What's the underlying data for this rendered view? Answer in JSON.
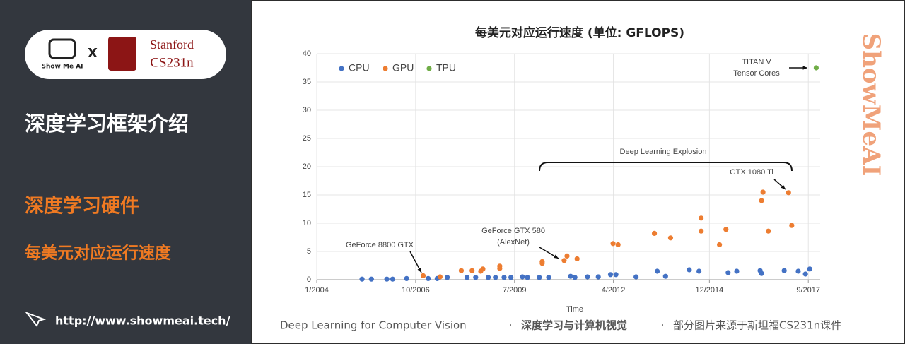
{
  "slide": {
    "logo": {
      "brand": "Show Me AI",
      "cross": "X",
      "school": "Stanford",
      "course": "CS231n"
    },
    "section_title": "深度学习框架介绍",
    "topic": "深度学习硬件",
    "subtopic": "每美元对应运行速度",
    "url": "http://www.showmeai.tech/",
    "footer": {
      "english": "Deep Learning for Computer Vision",
      "separator": "·",
      "chinese": "深度学习与计算机视觉",
      "source": "部分图片来源于斯坦福CS231n课件"
    },
    "watermark": "ShowMeAI"
  },
  "chart_data": {
    "type": "scatter",
    "title": "每美元对应运行速度 (单位: GFLOPS)",
    "x_label": "Time",
    "xlim": [
      2004,
      2018
    ],
    "xticks": [
      {
        "value": 2004.0,
        "label": "1/2004"
      },
      {
        "value": 2006.75,
        "label": "10/2006"
      },
      {
        "value": 2009.5,
        "label": "7/2009"
      },
      {
        "value": 2012.25,
        "label": "4/2012"
      },
      {
        "value": 2014.92,
        "label": "12/2014"
      },
      {
        "value": 2017.67,
        "label": "9/2017"
      }
    ],
    "ylim": [
      0,
      40
    ],
    "yticks": [
      0,
      5,
      10,
      15,
      20,
      25,
      30,
      35,
      40
    ],
    "grid": true,
    "legend": "upper left",
    "series": [
      {
        "name": "CPU",
        "color": "#4472c4",
        "x": [
          2005.26,
          2005.52,
          2005.95,
          2006.11,
          2006.5,
          2007.1,
          2007.35,
          2007.63,
          2008.18,
          2008.42,
          2008.77,
          2008.97,
          2009.21,
          2009.4,
          2009.72,
          2009.86,
          2010.19,
          2010.45,
          2011.06,
          2011.18,
          2011.53,
          2011.83,
          2012.17,
          2012.32,
          2012.88,
          2013.47,
          2013.7,
          2014.36,
          2014.63,
          2015.44,
          2015.68,
          2016.33,
          2016.37,
          2017.0,
          2017.39,
          2017.59,
          2017.71
        ],
        "values": [
          0.1,
          0.1,
          0.1,
          0.1,
          0.2,
          0.2,
          0.2,
          0.4,
          0.4,
          0.4,
          0.4,
          0.4,
          0.4,
          0.4,
          0.5,
          0.4,
          0.4,
          0.4,
          0.6,
          0.4,
          0.5,
          0.5,
          0.9,
          0.9,
          0.5,
          1.5,
          0.6,
          1.75,
          1.5,
          1.25,
          1.5,
          1.6,
          1.1,
          1.6,
          1.5,
          1.0,
          1.9
        ]
      },
      {
        "name": "GPU",
        "color": "#ed7d31",
        "x": [
          2006.96,
          2007.43,
          2008.02,
          2008.32,
          2008.56,
          2008.62,
          2009.09,
          2009.09,
          2010.27,
          2010.27,
          2010.88,
          2010.96,
          2011.24,
          2012.24,
          2012.38,
          2013.39,
          2013.84,
          2014.69,
          2014.69,
          2015.2,
          2015.38,
          2016.37,
          2016.41,
          2016.56,
          2017.12,
          2017.21
        ],
        "values": [
          0.7,
          0.5,
          1.6,
          1.6,
          1.5,
          1.9,
          2.4,
          2.0,
          3.2,
          2.9,
          3.4,
          4.2,
          3.7,
          6.4,
          6.2,
          8.2,
          7.4,
          10.9,
          8.6,
          6.2,
          8.9,
          14.0,
          15.5,
          8.6,
          15.4,
          9.6
        ]
      },
      {
        "name": "TPU",
        "color": "#70ad47",
        "x": [
          2017.89
        ],
        "values": [
          37.5
        ]
      }
    ],
    "annotations": [
      "GeForce 8800 GTX",
      "GeForce GTX 580",
      "(AlexNet)",
      "Deep Learning Explosion",
      "GTX 1080 Ti",
      "TITAN V",
      "Tensor Cores"
    ]
  }
}
